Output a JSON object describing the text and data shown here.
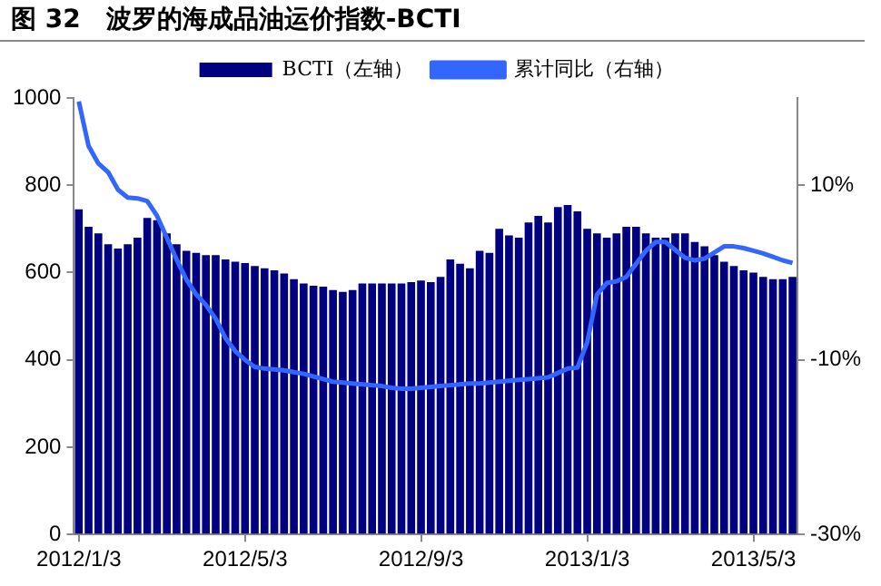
{
  "chart_data": {
    "type": "bar",
    "title": "图 32　波罗的海成品油运价指数-BCTI",
    "categories": [
      "2012/1/3",
      null,
      null,
      null,
      null,
      null,
      null,
      null,
      null,
      null,
      null,
      null,
      null,
      null,
      null,
      null,
      null,
      "2012/5/3",
      null,
      null,
      null,
      null,
      null,
      null,
      null,
      null,
      null,
      null,
      null,
      null,
      null,
      null,
      null,
      null,
      null,
      "2012/9/3",
      null,
      null,
      null,
      null,
      null,
      null,
      null,
      null,
      null,
      null,
      null,
      null,
      null,
      null,
      null,
      null,
      "2013/1/3",
      null,
      null,
      null,
      null,
      null,
      null,
      null,
      null,
      null,
      null,
      null,
      null,
      null,
      null,
      null,
      null,
      "2013/5/3",
      null,
      null,
      null,
      null
    ],
    "series": [
      {
        "name": "BCTI（左轴）",
        "color": "#000080",
        "values": [
          745,
          705,
          690,
          665,
          655,
          665,
          680,
          725,
          720,
          690,
          665,
          650,
          645,
          640,
          640,
          630,
          625,
          622,
          615,
          610,
          605,
          598,
          585,
          575,
          570,
          568,
          560,
          556,
          560,
          575,
          575,
          575,
          575,
          575,
          578,
          582,
          578,
          590,
          630,
          620,
          610,
          650,
          645,
          700,
          685,
          680,
          715,
          730,
          715,
          750,
          755,
          740,
          700,
          690,
          680,
          690,
          705,
          705,
          690,
          680,
          680,
          690,
          690,
          670,
          660,
          640,
          625,
          615,
          605,
          600,
          590,
          585,
          585,
          590
        ]
      },
      {
        "name": "累计同比（右轴）",
        "type": "line",
        "axis": "y2",
        "color": "#3366ff",
        "values": [
          19.6,
          14.5,
          12.5,
          11.5,
          9.5,
          8.6,
          8.5,
          8.2,
          6.5,
          4,
          1.5,
          -0.8,
          -2.5,
          -3.7,
          -5.3,
          -7.5,
          -9,
          -10,
          -10.8,
          -11,
          -11.1,
          -11.2,
          -11.4,
          -11.6,
          -11.9,
          -12.2,
          -12.5,
          -12.6,
          -12.7,
          -12.8,
          -12.9,
          -13,
          -13.2,
          -13.3,
          -13.3,
          -13.2,
          -13.1,
          -13,
          -12.9,
          -12.8,
          -12.7,
          -12.7,
          -12.6,
          -12.5,
          -12.4,
          -12.3,
          -12.2,
          -12.1,
          -12,
          -11.5,
          -11,
          -10.9,
          -8,
          -2.5,
          -1.2,
          -1,
          -0.5,
          1,
          2.5,
          3.5,
          3.5,
          2.6,
          1.7,
          1.4,
          1.6,
          2.3,
          3,
          3,
          2.8,
          2.5,
          2.2,
          1.8,
          1.4,
          1.1
        ]
      }
    ],
    "ylim": [
      0,
      1000
    ],
    "yticks": [
      0,
      200,
      400,
      600,
      800,
      1000
    ],
    "y2lim": [
      -30,
      20
    ],
    "y2ticks": [
      {
        "value": -30,
        "label": "-30%"
      },
      {
        "value": -10,
        "label": "-10%"
      },
      {
        "value": 10,
        "label": "10%"
      }
    ],
    "grid": false,
    "legend": "top",
    "marker": "none",
    "line_style": "solid"
  }
}
